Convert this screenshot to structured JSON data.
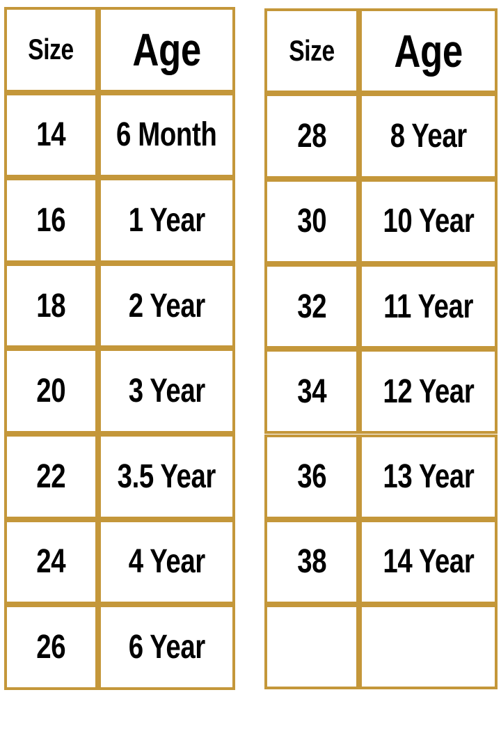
{
  "tables": [
    {
      "header": [
        "Size",
        "Age"
      ],
      "rows": [
        [
          "14",
          "6 Month"
        ],
        [
          "16",
          "1 Year"
        ],
        [
          "18",
          "2 Year"
        ],
        [
          "20",
          "3 Year"
        ],
        [
          "22",
          "3.5 Year"
        ],
        [
          "24",
          "4 Year"
        ],
        [
          "26",
          "6 Year"
        ]
      ]
    },
    {
      "header": [
        "Size",
        "Age"
      ],
      "rows": [
        [
          "28",
          "8 Year"
        ],
        [
          "30",
          "10 Year"
        ],
        [
          "32",
          "11 Year"
        ],
        [
          "34",
          "12 Year"
        ],
        [
          "36",
          "13 Year"
        ],
        [
          "38",
          "14 Year"
        ]
      ]
    }
  ]
}
